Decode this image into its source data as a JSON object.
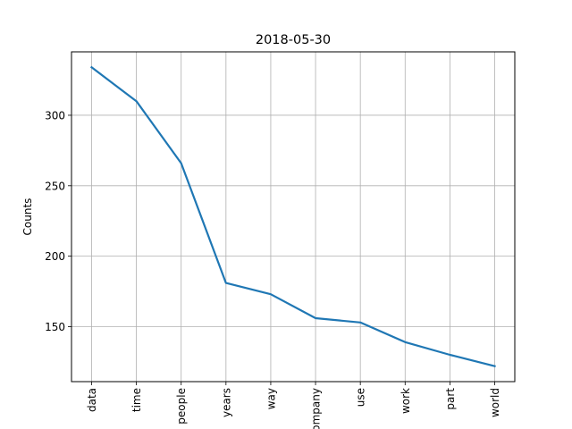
{
  "chart_data": {
    "type": "line",
    "title": "2018-05-30",
    "xlabel": "",
    "ylabel": "Counts",
    "categories": [
      "data",
      "time",
      "people",
      "years",
      "way",
      "company",
      "use",
      "work",
      "part",
      "world"
    ],
    "series": [
      {
        "values": [
          334,
          310,
          266,
          181,
          173,
          156,
          153,
          139,
          130,
          122
        ]
      }
    ],
    "ylim": [
      111,
      345
    ],
    "yticks": [
      150,
      200,
      250,
      300
    ],
    "grid": true,
    "line_color": "#1f77b4",
    "grid_color": "#b0b0b0"
  }
}
